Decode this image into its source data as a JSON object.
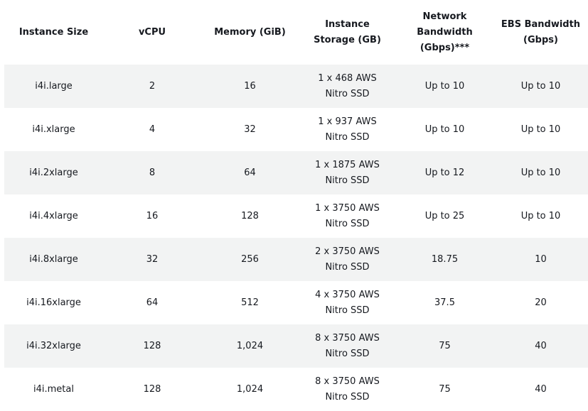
{
  "headers": [
    "Instance Size",
    "vCPU",
    "Memory (GiB)",
    "Instance Storage (GB)",
    "Network Bandwidth (Gbps)***",
    "EBS Bandwidth (Gbps)"
  ],
  "rows": [
    [
      "i4i.large",
      "2",
      "16",
      "1 x 468 AWS Nitro SSD",
      "Up to 10",
      "Up to 10"
    ],
    [
      "i4i.xlarge",
      "4",
      "32",
      "1 x 937 AWS Nitro SSD",
      "Up to 10",
      "Up to 10"
    ],
    [
      "i4i.2xlarge",
      "8",
      "64",
      "1 x 1875 AWS Nitro SSD",
      "Up to 12",
      "Up to 10"
    ],
    [
      "i4i.4xlarge",
      "16",
      "128",
      "1 x 3750 AWS Nitro SSD",
      "Up to 25",
      "Up to 10"
    ],
    [
      "i4i.8xlarge",
      "32",
      "256",
      "2 x 3750 AWS Nitro SSD",
      "18.75",
      "10"
    ],
    [
      "i4i.16xlarge",
      "64",
      "512",
      "4 x 3750 AWS Nitro SSD",
      "37.5",
      "20"
    ],
    [
      "i4i.32xlarge",
      "128",
      "1,024",
      "8 x 3750 AWS Nitro SSD",
      "75",
      "40"
    ],
    [
      "i4i.metal",
      "128",
      "1,024",
      "8 x 3750 AWS Nitro SSD",
      "75",
      "40"
    ]
  ]
}
